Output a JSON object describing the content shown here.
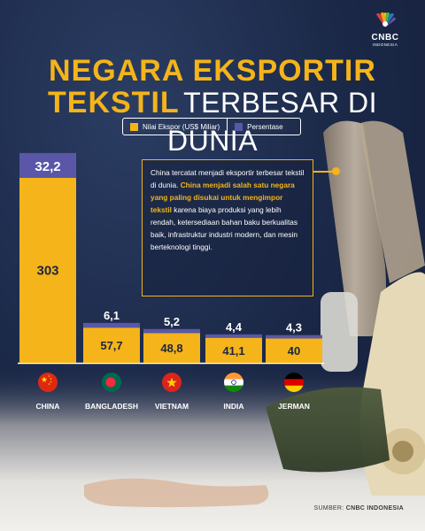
{
  "brand": {
    "name": "CNBC",
    "sub": "INDONESIA"
  },
  "title": {
    "line1": "NEGARA EKSPORTIR",
    "line2_bold": "TEKSTIL",
    "line2_rest": "TERBESAR DI DUNIA"
  },
  "colors": {
    "export": "#f4b41a",
    "percent": "#5a57a8",
    "accent": "#f4b41a"
  },
  "chart_data": {
    "type": "bar",
    "categories": [
      "CHINA",
      "BANGLADESH",
      "VIETNAM",
      "INDIA",
      "JERMAN"
    ],
    "series": [
      {
        "name": "Nilai Ekspor (US$ Miliar)",
        "values": [
          303,
          57.7,
          48.8,
          41.1,
          40
        ],
        "labels": [
          "303",
          "57,7",
          "48,8",
          "41,1",
          "40"
        ]
      },
      {
        "name": "Persentase",
        "values": [
          32.2,
          6.1,
          5.2,
          4.4,
          4.3
        ],
        "labels": [
          "32,2",
          "6,1",
          "5,2",
          "4,4",
          "4,3"
        ]
      }
    ],
    "flags": [
      "china-flag-icon",
      "bangladesh-flag-icon",
      "vietnam-flag-icon",
      "india-flag-icon",
      "germany-flag-icon"
    ],
    "legend_position": "top",
    "grid": false
  },
  "note": {
    "p1": "China tercatat menjadi eksportir terbesar tekstil di dunia.",
    "p2": "China menjadi salah satu negara yang paling disukai untuk mengimpor tekstil",
    "p3": "karena biaya produksi yang lebih rendah, ketersediaan bahan baku berkualitas baik, infrastruktur industri modern, dan mesin berteknologi tinggi."
  },
  "source": {
    "label": "SUMBER:",
    "value": "CNBC INDONESIA"
  }
}
